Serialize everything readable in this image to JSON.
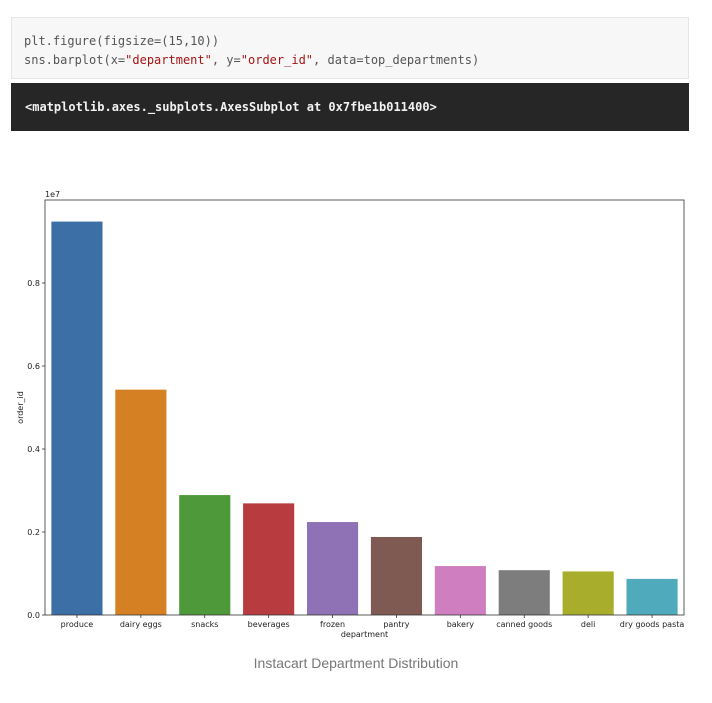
{
  "code": {
    "line1": "plt.figure(figsize=(15,10))",
    "line2_pre": "sns.barplot(x=",
    "line2_x": "\"department\"",
    "line2_mid": ", y=",
    "line2_y": "\"order_id\"",
    "line2_post": ", data=top_departments)"
  },
  "output": {
    "text": "<matplotlib.axes._subplots.AxesSubplot at 0x7fbe1b011400>"
  },
  "caption": "Instacart Department Distribution",
  "chart_data": {
    "type": "bar",
    "categories": [
      "produce",
      "dairy eggs",
      "snacks",
      "beverages",
      "frozen",
      "pantry",
      "bakery",
      "canned goods",
      "deli",
      "dry goods pasta"
    ],
    "values": [
      9480000,
      5430000,
      2890000,
      2690000,
      2240000,
      1880000,
      1180000,
      1080000,
      1050000,
      870000
    ],
    "colors": [
      "#3b6fa6",
      "#d68024",
      "#4e9a3a",
      "#b83c3f",
      "#8f72b6",
      "#7f5a52",
      "#cf7fc0",
      "#7d7d7d",
      "#a8ad2c",
      "#4fabbb"
    ],
    "xlabel": "department",
    "ylabel": "order_id",
    "offset_label": "1e7",
    "yticks": [
      0.0,
      0.2,
      0.4,
      0.6,
      0.8
    ],
    "ytick_labels": [
      "0.0",
      "0.2",
      "0.4",
      "0.6",
      "0.8"
    ],
    "scale": 10000000,
    "ylim": [
      0,
      10000000
    ],
    "grid": false
  }
}
